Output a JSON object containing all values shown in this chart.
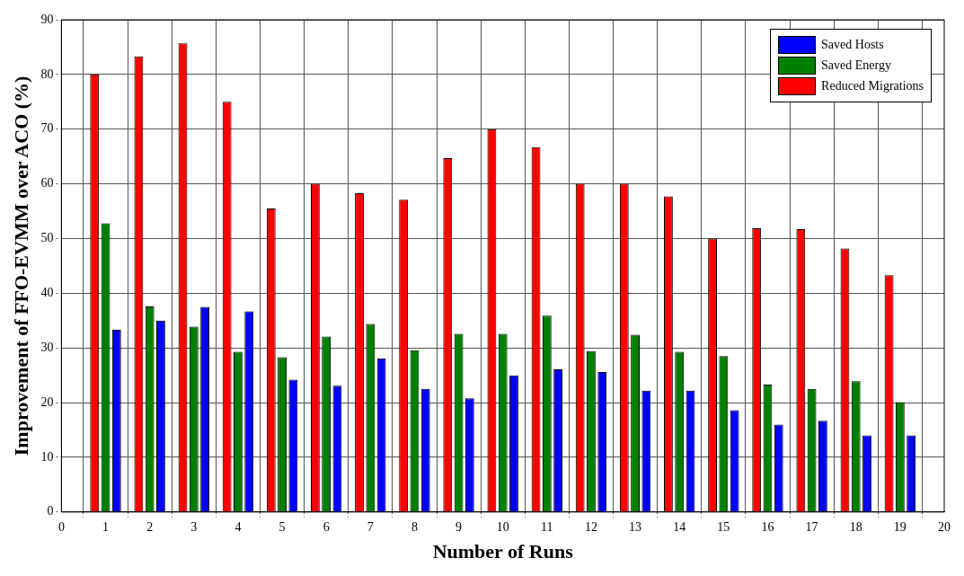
{
  "chart_data": {
    "type": "bar",
    "xlabel": "Number of Runs",
    "ylabel": "Improvement of FFO-EVMM over ACO (%)",
    "x": [
      1,
      2,
      3,
      4,
      5,
      6,
      7,
      8,
      9,
      10,
      11,
      12,
      13,
      14,
      15,
      16,
      17,
      18,
      19
    ],
    "series": [
      {
        "name": "Reduced Migrations",
        "color": "#ff0000",
        "values": [
          80,
          83.3,
          85.7,
          75,
          55.5,
          60,
          58.3,
          57.1,
          64.7,
          70,
          66.7,
          60,
          60,
          57.7,
          50,
          51.9,
          51.7,
          48.2,
          43.3
        ]
      },
      {
        "name": "Saved Energy",
        "color": "#007f00",
        "values": [
          52.8,
          37.6,
          33.9,
          29.3,
          28.3,
          32.1,
          34.4,
          29.6,
          32.6,
          32.6,
          35.9,
          29.4,
          32.4,
          29.3,
          28.5,
          23.3,
          22.5,
          23.9,
          20.1
        ]
      },
      {
        "name": "Saved Hosts",
        "color": "#0000ff",
        "values": [
          33.3,
          35,
          37.5,
          36.7,
          24.2,
          23.1,
          28.1,
          22.5,
          20.8,
          25,
          26.1,
          25.6,
          22.2,
          22.2,
          18.6,
          16,
          16.7,
          14,
          14
        ]
      }
    ],
    "xlim": [
      0,
      20
    ],
    "xticks": [
      0,
      1,
      2,
      3,
      4,
      5,
      6,
      7,
      8,
      9,
      10,
      11,
      12,
      13,
      14,
      15,
      16,
      17,
      18,
      19,
      20
    ],
    "ylim": [
      0,
      90
    ],
    "yticks": [
      0,
      10,
      20,
      30,
      40,
      50,
      60,
      70,
      80,
      90
    ],
    "grid": true,
    "legend": "top right"
  }
}
